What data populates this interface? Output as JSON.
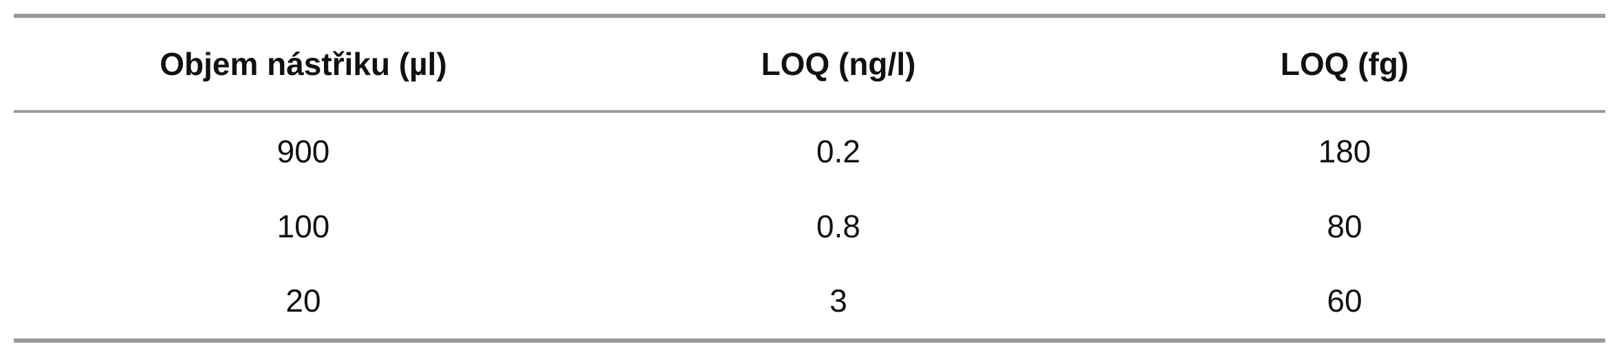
{
  "table": {
    "headers": [
      "Objem nástřiku (µl)",
      "LOQ (ng/l)",
      "LOQ (fg)"
    ],
    "rows": [
      [
        "900",
        "0.2",
        "180"
      ],
      [
        "100",
        "0.8",
        "80"
      ],
      [
        "20",
        "3",
        "60"
      ]
    ]
  },
  "colors": {
    "rule": "#9a9a9a",
    "text": "#111111",
    "background": "#ffffff"
  }
}
